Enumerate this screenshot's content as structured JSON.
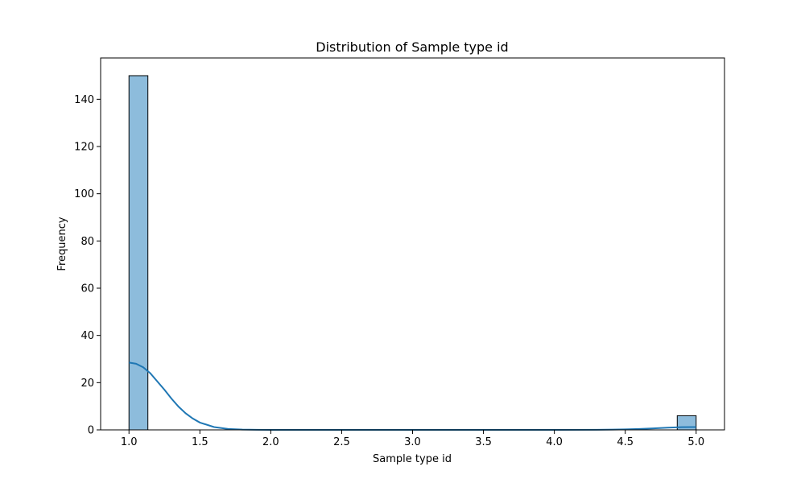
{
  "chart_data": {
    "type": "bar",
    "title": "Distribution of Sample type id",
    "xlabel": "Sample type id",
    "ylabel": "Frequency",
    "xlim": [
      0.8,
      5.2
    ],
    "ylim": [
      0,
      157.5
    ],
    "x_ticks": [
      "1.0",
      "1.5",
      "2.0",
      "2.5",
      "3.0",
      "3.5",
      "4.0",
      "4.5",
      "5.0"
    ],
    "y_ticks": [
      "0",
      "20",
      "40",
      "60",
      "80",
      "100",
      "120",
      "140"
    ],
    "grid": false,
    "legend": "none",
    "bar_color": "#8dbcdc",
    "edge_color": "#000000",
    "kde_color": "#1f77b4",
    "bins": [
      {
        "x0": 1.0,
        "x1": 1.1333,
        "count": 150
      },
      {
        "x0": 4.8667,
        "x1": 5.0,
        "count": 6
      }
    ],
    "kde": {
      "x": [
        1.0,
        1.05,
        1.1,
        1.15,
        1.2,
        1.25,
        1.3,
        1.35,
        1.4,
        1.45,
        1.5,
        1.6,
        1.7,
        1.8,
        1.9,
        2.0,
        2.5,
        3.0,
        3.5,
        4.0,
        4.3,
        4.5,
        4.6,
        4.7,
        4.8,
        4.9,
        5.0
      ],
      "y": [
        28.5,
        28.0,
        26.5,
        24.0,
        20.5,
        17.0,
        13.2,
        9.8,
        7.0,
        4.8,
        3.1,
        1.2,
        0.4,
        0.12,
        0.03,
        0.0,
        0.0,
        0.0,
        0.0,
        0.0,
        0.05,
        0.2,
        0.4,
        0.65,
        0.95,
        1.15,
        1.2
      ]
    }
  }
}
